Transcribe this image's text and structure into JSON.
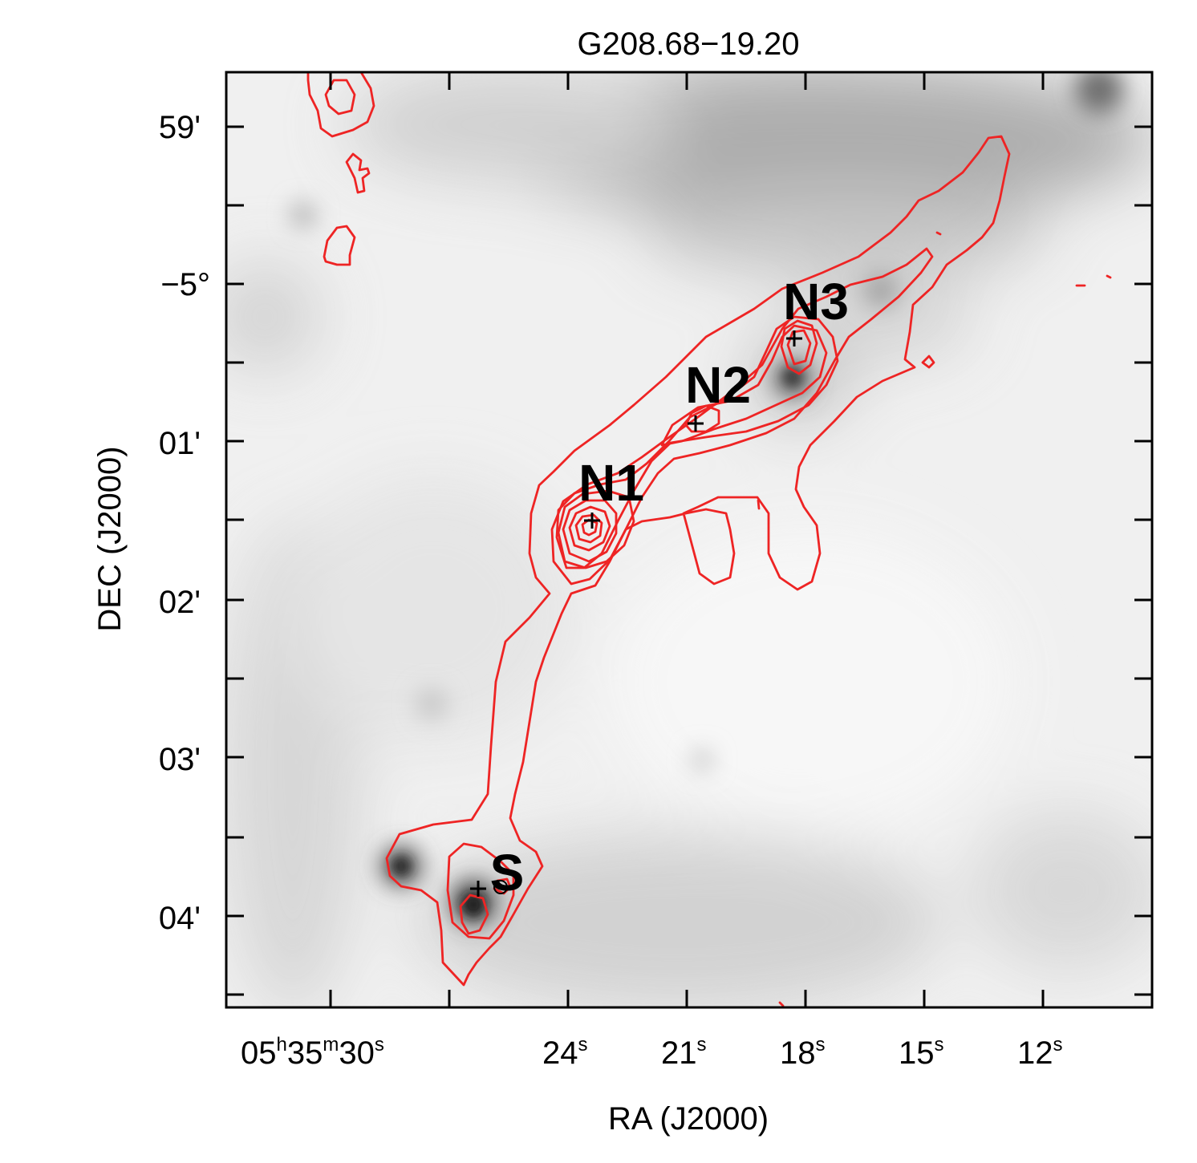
{
  "chart_data": {
    "type": "contour-map",
    "title": "G208.68−19.20",
    "xlabel": "RA (J2000)",
    "ylabel": "DEC (J2000)",
    "x_ticks": [
      {
        "prefix": "05",
        "h": "h",
        "mid": "35",
        "m": "m",
        "value": "30",
        "s": "s"
      },
      {
        "value": "24",
        "s": "s"
      },
      {
        "value": "21",
        "s": "s"
      },
      {
        "value": "18",
        "s": "s"
      },
      {
        "value": "15",
        "s": "s"
      },
      {
        "value": "12",
        "s": "s"
      }
    ],
    "y_ticks": [
      {
        "label": "59'"
      },
      {
        "label": "−5°"
      },
      {
        "label": "01'"
      },
      {
        "label": "02'"
      },
      {
        "label": "03'"
      },
      {
        "label": "04'"
      }
    ],
    "sources": [
      {
        "name": "N1",
        "ra_s": 23.4,
        "dec_arcmin": 1.5
      },
      {
        "name": "N2",
        "ra_s": 20.8,
        "dec_arcmin": 0.9
      },
      {
        "name": "N3",
        "ra_s": 18.2,
        "dec_arcmin": 0.35
      },
      {
        "name": "S",
        "ra_s": 26.6,
        "dec_arcmin": 3.82
      }
    ],
    "background": "grayscale intensity image",
    "contour_color": "#ee2424"
  }
}
